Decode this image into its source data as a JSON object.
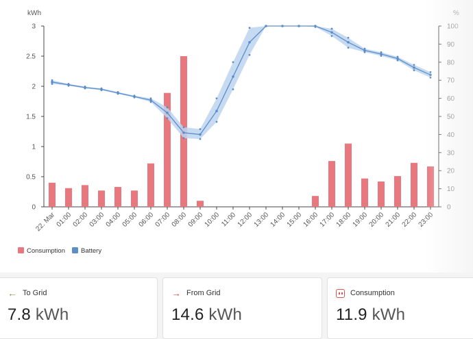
{
  "chart_data": {
    "type": "bar+line",
    "categories": [
      "22. Mar",
      "01:00",
      "02:00",
      "03:00",
      "04:00",
      "05:00",
      "06:00",
      "07:00",
      "08:00",
      "09:00",
      "10:00",
      "11:00",
      "12:00",
      "13:00",
      "14:00",
      "15:00",
      "16:00",
      "17:00",
      "18:00",
      "19:00",
      "20:00",
      "21:00",
      "22:00",
      "23:00"
    ],
    "left_axis": {
      "label": "kWh",
      "min": 0,
      "max": 3,
      "ticks": [
        "0",
        "0.5",
        "1",
        "1.5",
        "2",
        "2.5",
        "3"
      ]
    },
    "right_axis": {
      "label": "%",
      "min": 0,
      "max": 100,
      "ticks": [
        "0",
        "10",
        "20",
        "30",
        "40",
        "50",
        "60",
        "70",
        "80",
        "90",
        "100"
      ]
    },
    "series": [
      {
        "name": "Consumption",
        "type": "bar",
        "axis": "left",
        "color": "#e8777e",
        "values": [
          0.4,
          0.31,
          0.36,
          0.27,
          0.33,
          0.27,
          0.72,
          1.89,
          2.5,
          0.1,
          0,
          0,
          0,
          0,
          0,
          0,
          0.18,
          0.76,
          1.05,
          0.47,
          0.42,
          0.51,
          0.73,
          0.67
        ]
      },
      {
        "name": "Battery",
        "type": "line",
        "axis": "right",
        "color": "#5b8ec9",
        "band_color": "#bcd3ee",
        "mid": [
          69,
          67.5,
          66,
          65,
          63,
          61,
          59,
          52,
          41,
          40,
          53,
          72,
          91,
          100,
          100,
          100,
          100,
          96.5,
          91,
          86.5,
          84.5,
          82,
          77,
          73
        ],
        "low": [
          68,
          67,
          65.5,
          64.5,
          62.5,
          60.5,
          58,
          49,
          38,
          37.5,
          47,
          65,
          84,
          100,
          100,
          100,
          99.5,
          94.5,
          88,
          85.5,
          83.5,
          81,
          75.5,
          71.5
        ],
        "high": [
          70,
          68,
          66.5,
          65.5,
          63.5,
          61.5,
          60,
          55,
          44,
          43,
          60,
          80,
          99,
          100,
          100,
          100,
          100,
          98.5,
          93.5,
          87.5,
          85.5,
          83,
          78.5,
          74.5
        ]
      }
    ],
    "legend": {
      "position": "bottom-left",
      "items": [
        {
          "name": "Consumption",
          "color": "#e8777e"
        },
        {
          "name": "Battery",
          "color": "#5b8ec9"
        }
      ]
    }
  },
  "cards": [
    {
      "title": "To Grid",
      "icon": "arrow-left-icon",
      "value": "7.8",
      "unit": "kWh"
    },
    {
      "title": "From Grid",
      "icon": "arrow-right-icon",
      "value": "14.6",
      "unit": "kWh"
    },
    {
      "title": "Consumption",
      "icon": "plug-icon",
      "value": "11.9",
      "unit": "kWh"
    }
  ]
}
